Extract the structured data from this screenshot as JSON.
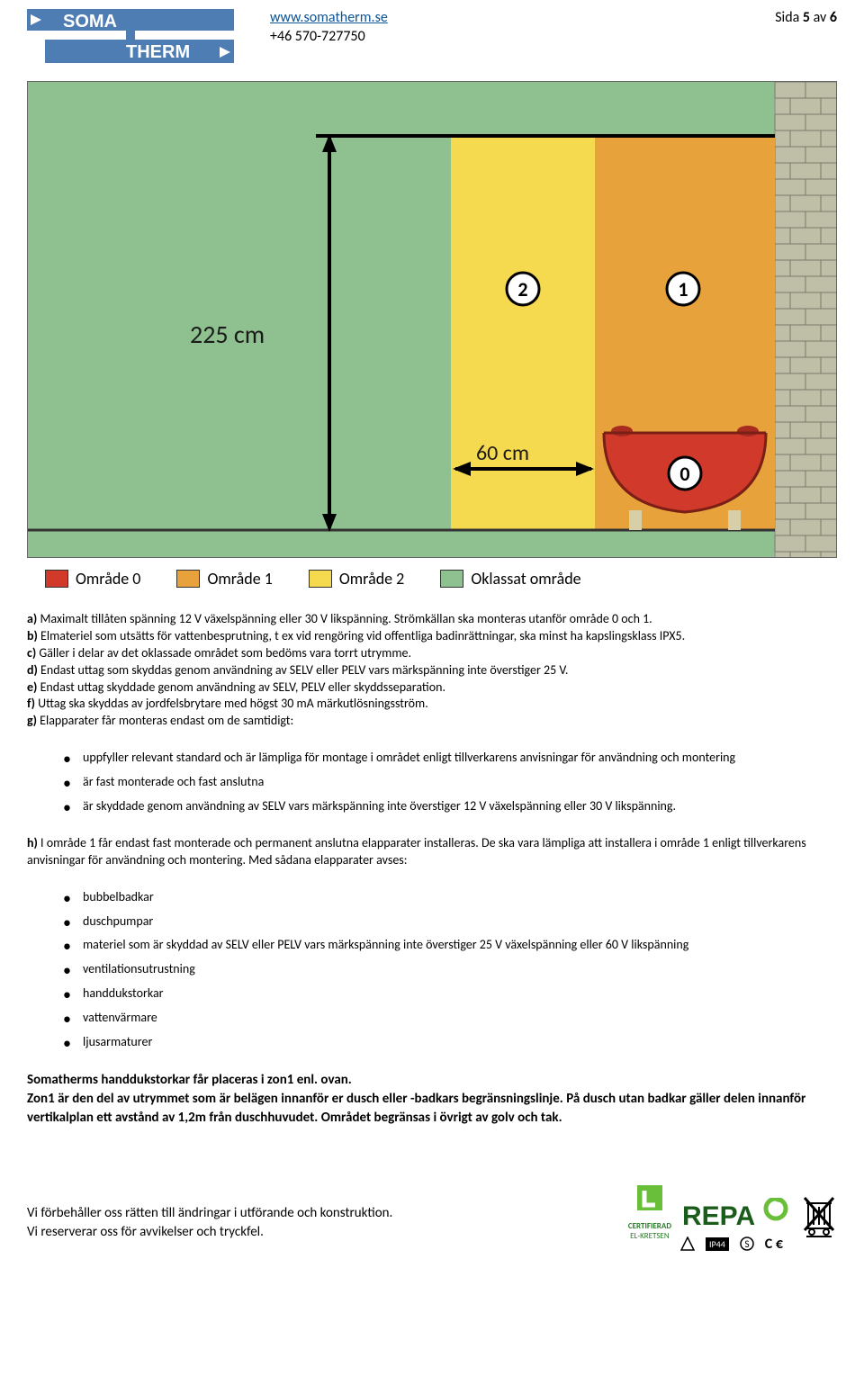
{
  "header": {
    "logo_top": "SOMA",
    "logo_bottom": "THERM",
    "url": "www.somatherm.se",
    "phone": "+46 570-727750",
    "page_label": "Sida ",
    "page_num": "5",
    "page_sep": " av ",
    "page_total": "6"
  },
  "diagram": {
    "bg_green": "#8fc08f",
    "zone2": "#f5d94e",
    "zone1": "#e8a23c",
    "zone0": "#d13a2b",
    "wall": "#bfbfa8",
    "tub_leg": "#d6cfa7",
    "line_color": "#1a1a1a",
    "height_label": "225 cm",
    "width_label": "60 cm",
    "marker_bg": "#ffffff",
    "markers": [
      "2",
      "1",
      "0"
    ]
  },
  "legend": {
    "items": [
      {
        "label": "Område 0",
        "color": "#d13a2b"
      },
      {
        "label": "Område 1",
        "color": "#e8a23c"
      },
      {
        "label": "Område 2",
        "color": "#f5d94e"
      },
      {
        "label": "Oklassat område",
        "color": "#8fc08f"
      }
    ]
  },
  "paragraphs": {
    "a_lead": "a) ",
    "a": "Maximalt tillåten spänning 12 V växelspänning eller 30 V likspänning. Strömkällan ska monteras utanför område 0 och 1.",
    "b_lead": "b) ",
    "b": "Elmateriel som utsätts för vattenbesprutning, t ex vid rengöring vid offentliga badinrättningar, ska minst ha kapslingsklass IPX5.",
    "c_lead": "c) ",
    "c": "Gäller i delar av det oklassade området som bedöms vara torrt utrymme.",
    "d_lead": "d) ",
    "d": "Endast uttag som skyddas genom användning av SELV eller PELV vars märkspänning inte överstiger 25 V.",
    "e_lead": "e) ",
    "e": "Endast uttag skyddade genom användning av SELV, PELV eller skyddsseparation.",
    "f_lead": "f) ",
    "f": "Uttag ska skyddas av jordfelsbrytare med högst 30 mA märkutlösningsström.",
    "g_lead": "g) ",
    "g": "Elapparater får monteras endast om de samtidigt:"
  },
  "g_list": [
    "uppfyller relevant standard och är lämpliga för montage i området enligt tillverkarens anvisningar för användning och montering",
    "är fast monterade och fast anslutna",
    "är skyddade genom användning av SELV vars märkspänning inte överstiger 12 V växelspänning eller 30 V likspänning."
  ],
  "h_lead": "h) ",
  "h": "I område 1 får endast fast monterade och permanent anslutna elapparater installeras. De ska vara lämpliga att installera i område 1 enligt tillverkarens anvisningar för användning och montering. Med sådana elapparater avses:",
  "h_list": [
    "bubbelbadkar",
    "duschpumpar",
    "materiel som är skyddad av SELV eller PELV vars märkspänning inte överstiger 25 V växelspänning eller 60 V likspänning",
    "ventilationsutrustning",
    "handdukstorkar",
    "vattenvärmare",
    "ljusarmaturer"
  ],
  "closing1": "Somatherms handdukstorkar får placeras i zon1 enl. ovan.",
  "closing2": "Zon1 är den del av utrymmet som är belägen innanför er dusch eller -badkars begränsningslinje. På dusch utan badkar gäller delen innanför vertikalplan ett avstånd av 1,2m från duschhuvudet. Området begränsas i övrigt av golv och tak.",
  "footer": {
    "line1": "Vi förbehåller oss rätten till ändringar i utförande och konstruktion.",
    "line2": "Vi reserverar oss för avvikelser och tryckfel.",
    "cert_top": "CERTIFIERAD",
    "cert_bottom": "EL-KRETSEN",
    "repa": "REPA",
    "ce": "C €"
  },
  "colors": {
    "repa_dark": "#1a5c1a",
    "repa_light": "#6abf3a",
    "link": "#0b5394"
  }
}
